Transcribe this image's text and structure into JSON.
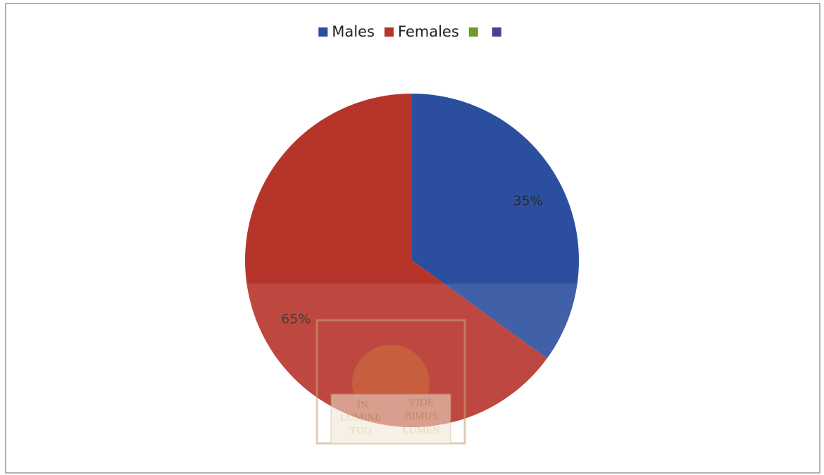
{
  "chart_data": {
    "type": "pie",
    "categories": [
      "Males",
      "Females",
      null,
      null
    ],
    "values": [
      35,
      65,
      0,
      0
    ],
    "value_labels": [
      "35%",
      "65%",
      null,
      null
    ],
    "colors": [
      "#2b4f9e",
      "#b7342a",
      "#6d9b2c",
      "#4b3f92"
    ],
    "legend": "top"
  },
  "watermark": [
    "IN",
    "VIDE",
    "LUMINE",
    "BIMUS",
    "TUO",
    "LUMEN"
  ]
}
